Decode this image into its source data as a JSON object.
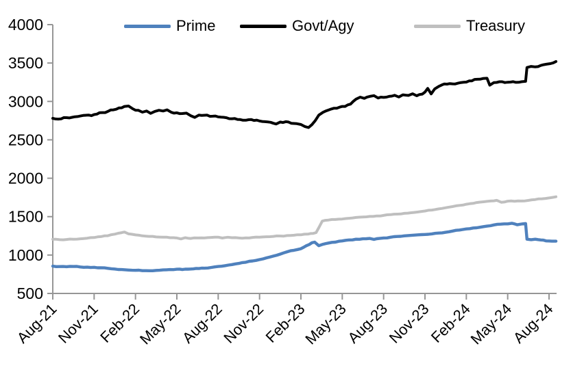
{
  "legend": [
    {
      "label": "Prime",
      "color": "#4f81bd"
    },
    {
      "label": "Govt/Agy",
      "color": "#000000"
    },
    {
      "label": "Treasury",
      "color": "#bfbfbf"
    }
  ],
  "chart_data": {
    "type": "line",
    "title": "",
    "xlabel": "",
    "ylabel": "",
    "ylim": [
      500,
      4000
    ],
    "y_ticks": [
      500,
      1000,
      1500,
      2000,
      2500,
      3000,
      3500,
      4000
    ],
    "x_tick_labels": [
      "Aug-21",
      "Nov-21",
      "Feb-22",
      "May-22",
      "Aug-22",
      "Nov-22",
      "Feb-23",
      "May-23",
      "Aug-23",
      "Nov-23",
      "Feb-24",
      "May-24",
      "Aug-24"
    ],
    "x_tick_months": [
      0,
      3,
      6,
      9,
      12,
      15,
      18,
      21,
      24,
      27,
      30,
      33,
      36
    ],
    "x_month_range": [
      0,
      36.5
    ],
    "grid": false,
    "legend_position": "top",
    "axis_color": "#969696",
    "series": [
      {
        "name": "Prime",
        "color": "#4f81bd",
        "line_width": 4.4,
        "noise": 4,
        "points": [
          [
            0,
            855
          ],
          [
            0.5,
            850
          ],
          [
            1,
            848
          ],
          [
            1.5,
            851
          ],
          [
            2,
            845
          ],
          [
            2.5,
            842
          ],
          [
            3,
            840
          ],
          [
            3.5,
            834
          ],
          [
            4,
            827
          ],
          [
            4.5,
            818
          ],
          [
            5,
            811
          ],
          [
            5.5,
            805
          ],
          [
            6,
            801
          ],
          [
            6.5,
            797
          ],
          [
            7,
            796
          ],
          [
            7.5,
            800
          ],
          [
            8,
            806
          ],
          [
            8.5,
            811
          ],
          [
            9,
            815
          ],
          [
            9.4,
            811
          ],
          [
            9.8,
            816
          ],
          [
            10.2,
            820
          ],
          [
            10.6,
            824
          ],
          [
            11,
            829
          ],
          [
            11.5,
            838
          ],
          [
            12,
            851
          ],
          [
            12.5,
            862
          ],
          [
            13,
            876
          ],
          [
            13.5,
            891
          ],
          [
            14,
            906
          ],
          [
            14.5,
            923
          ],
          [
            15,
            941
          ],
          [
            15.5,
            963
          ],
          [
            16,
            986
          ],
          [
            16.5,
            1012
          ],
          [
            17,
            1042
          ],
          [
            17.5,
            1062
          ],
          [
            18,
            1082
          ],
          [
            18.4,
            1122
          ],
          [
            18.8,
            1160
          ],
          [
            19,
            1168
          ],
          [
            19.3,
            1122
          ],
          [
            19.6,
            1140
          ],
          [
            20,
            1156
          ],
          [
            20.5,
            1168
          ],
          [
            21,
            1184
          ],
          [
            21.5,
            1196
          ],
          [
            22,
            1206
          ],
          [
            22.5,
            1212
          ],
          [
            23,
            1216
          ],
          [
            23.3,
            1204
          ],
          [
            23.7,
            1216
          ],
          [
            24,
            1222
          ],
          [
            24.5,
            1232
          ],
          [
            25,
            1242
          ],
          [
            25.5,
            1250
          ],
          [
            26,
            1256
          ],
          [
            26.5,
            1263
          ],
          [
            27,
            1268
          ],
          [
            27.5,
            1276
          ],
          [
            28,
            1286
          ],
          [
            28.5,
            1296
          ],
          [
            29,
            1312
          ],
          [
            29.5,
            1326
          ],
          [
            30,
            1340
          ],
          [
            30.5,
            1352
          ],
          [
            31,
            1362
          ],
          [
            31.5,
            1376
          ],
          [
            32,
            1392
          ],
          [
            32.5,
            1402
          ],
          [
            33,
            1406
          ],
          [
            33.3,
            1414
          ],
          [
            33.7,
            1394
          ],
          [
            34,
            1404
          ],
          [
            34.3,
            1410
          ],
          [
            34.4,
            1206
          ],
          [
            34.7,
            1200
          ],
          [
            35,
            1206
          ],
          [
            35.4,
            1196
          ],
          [
            35.8,
            1184
          ],
          [
            36.2,
            1180
          ],
          [
            36.5,
            1180
          ]
        ]
      },
      {
        "name": "Govt/Agy",
        "color": "#000000",
        "line_width": 4,
        "noise": 9,
        "points": [
          [
            0,
            2780
          ],
          [
            0.4,
            2770
          ],
          [
            0.8,
            2790
          ],
          [
            1.2,
            2785
          ],
          [
            1.6,
            2800
          ],
          [
            2,
            2810
          ],
          [
            2.4,
            2820
          ],
          [
            2.8,
            2815
          ],
          [
            3.2,
            2835
          ],
          [
            3.6,
            2855
          ],
          [
            4,
            2870
          ],
          [
            4.4,
            2890
          ],
          [
            4.8,
            2915
          ],
          [
            5.2,
            2935
          ],
          [
            5.5,
            2940
          ],
          [
            5.8,
            2905
          ],
          [
            6.2,
            2885
          ],
          [
            6.5,
            2860
          ],
          [
            6.8,
            2875
          ],
          [
            7.1,
            2845
          ],
          [
            7.4,
            2870
          ],
          [
            7.7,
            2885
          ],
          [
            8,
            2875
          ],
          [
            8.3,
            2890
          ],
          [
            8.6,
            2858
          ],
          [
            9,
            2852
          ],
          [
            9.4,
            2842
          ],
          [
            9.7,
            2848
          ],
          [
            10,
            2815
          ],
          [
            10.3,
            2792
          ],
          [
            10.6,
            2822
          ],
          [
            11,
            2820
          ],
          [
            11.4,
            2806
          ],
          [
            11.8,
            2810
          ],
          [
            12.2,
            2795
          ],
          [
            12.6,
            2788
          ],
          [
            13,
            2775
          ],
          [
            13.4,
            2766
          ],
          [
            13.8,
            2755
          ],
          [
            14.2,
            2762
          ],
          [
            14.6,
            2752
          ],
          [
            15,
            2745
          ],
          [
            15.4,
            2736
          ],
          [
            15.8,
            2728
          ],
          [
            16.2,
            2706
          ],
          [
            16.5,
            2732
          ],
          [
            16.9,
            2736
          ],
          [
            17.3,
            2716
          ],
          [
            17.7,
            2710
          ],
          [
            18,
            2700
          ],
          [
            18.3,
            2672
          ],
          [
            18.55,
            2660
          ],
          [
            18.8,
            2698
          ],
          [
            19.05,
            2752
          ],
          [
            19.3,
            2822
          ],
          [
            19.6,
            2858
          ],
          [
            20,
            2888
          ],
          [
            20.4,
            2912
          ],
          [
            20.8,
            2925
          ],
          [
            21.2,
            2935
          ],
          [
            21.6,
            2965
          ],
          [
            22,
            3030
          ],
          [
            22.3,
            3056
          ],
          [
            22.6,
            3040
          ],
          [
            23,
            3066
          ],
          [
            23.3,
            3076
          ],
          [
            23.6,
            3044
          ],
          [
            24,
            3052
          ],
          [
            24.4,
            3066
          ],
          [
            24.8,
            3080
          ],
          [
            25.1,
            3058
          ],
          [
            25.4,
            3086
          ],
          [
            25.8,
            3078
          ],
          [
            26.1,
            3100
          ],
          [
            26.4,
            3074
          ],
          [
            26.8,
            3095
          ],
          [
            27,
            3122
          ],
          [
            27.2,
            3170
          ],
          [
            27.45,
            3098
          ],
          [
            27.7,
            3162
          ],
          [
            28,
            3196
          ],
          [
            28.4,
            3228
          ],
          [
            28.8,
            3232
          ],
          [
            29.2,
            3228
          ],
          [
            29.6,
            3246
          ],
          [
            30,
            3252
          ],
          [
            30.4,
            3268
          ],
          [
            30.8,
            3288
          ],
          [
            31.2,
            3298
          ],
          [
            31.5,
            3302
          ],
          [
            31.7,
            3212
          ],
          [
            32,
            3246
          ],
          [
            32.4,
            3256
          ],
          [
            32.8,
            3246
          ],
          [
            33.2,
            3252
          ],
          [
            33.6,
            3248
          ],
          [
            34,
            3256
          ],
          [
            34.3,
            3262
          ],
          [
            34.4,
            3442
          ],
          [
            34.7,
            3456
          ],
          [
            35,
            3450
          ],
          [
            35.4,
            3468
          ],
          [
            35.8,
            3484
          ],
          [
            36.1,
            3492
          ],
          [
            36.3,
            3502
          ],
          [
            36.5,
            3520
          ]
        ]
      },
      {
        "name": "Treasury",
        "color": "#bfbfbf",
        "line_width": 4,
        "noise": 4,
        "points": [
          [
            0,
            1205
          ],
          [
            0.5,
            1200
          ],
          [
            1,
            1203
          ],
          [
            1.5,
            1206
          ],
          [
            2,
            1212
          ],
          [
            2.5,
            1220
          ],
          [
            3,
            1228
          ],
          [
            3.5,
            1240
          ],
          [
            4,
            1252
          ],
          [
            4.5,
            1272
          ],
          [
            5,
            1292
          ],
          [
            5.2,
            1300
          ],
          [
            5.5,
            1276
          ],
          [
            6,
            1262
          ],
          [
            6.5,
            1250
          ],
          [
            7,
            1243
          ],
          [
            7.5,
            1236
          ],
          [
            8,
            1232
          ],
          [
            8.5,
            1226
          ],
          [
            9,
            1222
          ],
          [
            9.3,
            1210
          ],
          [
            9.6,
            1226
          ],
          [
            10,
            1216
          ],
          [
            10.5,
            1222
          ],
          [
            11,
            1222
          ],
          [
            11.5,
            1229
          ],
          [
            12,
            1233
          ],
          [
            12.3,
            1221
          ],
          [
            12.7,
            1232
          ],
          [
            13,
            1226
          ],
          [
            13.5,
            1222
          ],
          [
            14,
            1223
          ],
          [
            14.5,
            1229
          ],
          [
            15,
            1233
          ],
          [
            15.5,
            1238
          ],
          [
            16,
            1243
          ],
          [
            16.5,
            1248
          ],
          [
            17,
            1253
          ],
          [
            17.5,
            1258
          ],
          [
            18,
            1263
          ],
          [
            18.5,
            1272
          ],
          [
            18.9,
            1282
          ],
          [
            19.1,
            1292
          ],
          [
            19.55,
            1442
          ],
          [
            20,
            1456
          ],
          [
            20.5,
            1463
          ],
          [
            21,
            1469
          ],
          [
            21.5,
            1479
          ],
          [
            22,
            1489
          ],
          [
            22.5,
            1496
          ],
          [
            23,
            1503
          ],
          [
            23.5,
            1509
          ],
          [
            24,
            1516
          ],
          [
            24.5,
            1526
          ],
          [
            25,
            1533
          ],
          [
            25.5,
            1543
          ],
          [
            26,
            1551
          ],
          [
            26.5,
            1561
          ],
          [
            27,
            1573
          ],
          [
            27.5,
            1586
          ],
          [
            28,
            1601
          ],
          [
            28.5,
            1616
          ],
          [
            29,
            1631
          ],
          [
            29.5,
            1646
          ],
          [
            30,
            1661
          ],
          [
            30.5,
            1673
          ],
          [
            31,
            1689
          ],
          [
            31.5,
            1699
          ],
          [
            32,
            1706
          ],
          [
            32.2,
            1712
          ],
          [
            32.55,
            1686
          ],
          [
            33,
            1701
          ],
          [
            33.5,
            1700
          ],
          [
            34,
            1703
          ],
          [
            34.5,
            1711
          ],
          [
            35,
            1723
          ],
          [
            35.5,
            1733
          ],
          [
            36,
            1743
          ],
          [
            36.5,
            1758
          ]
        ]
      }
    ]
  }
}
